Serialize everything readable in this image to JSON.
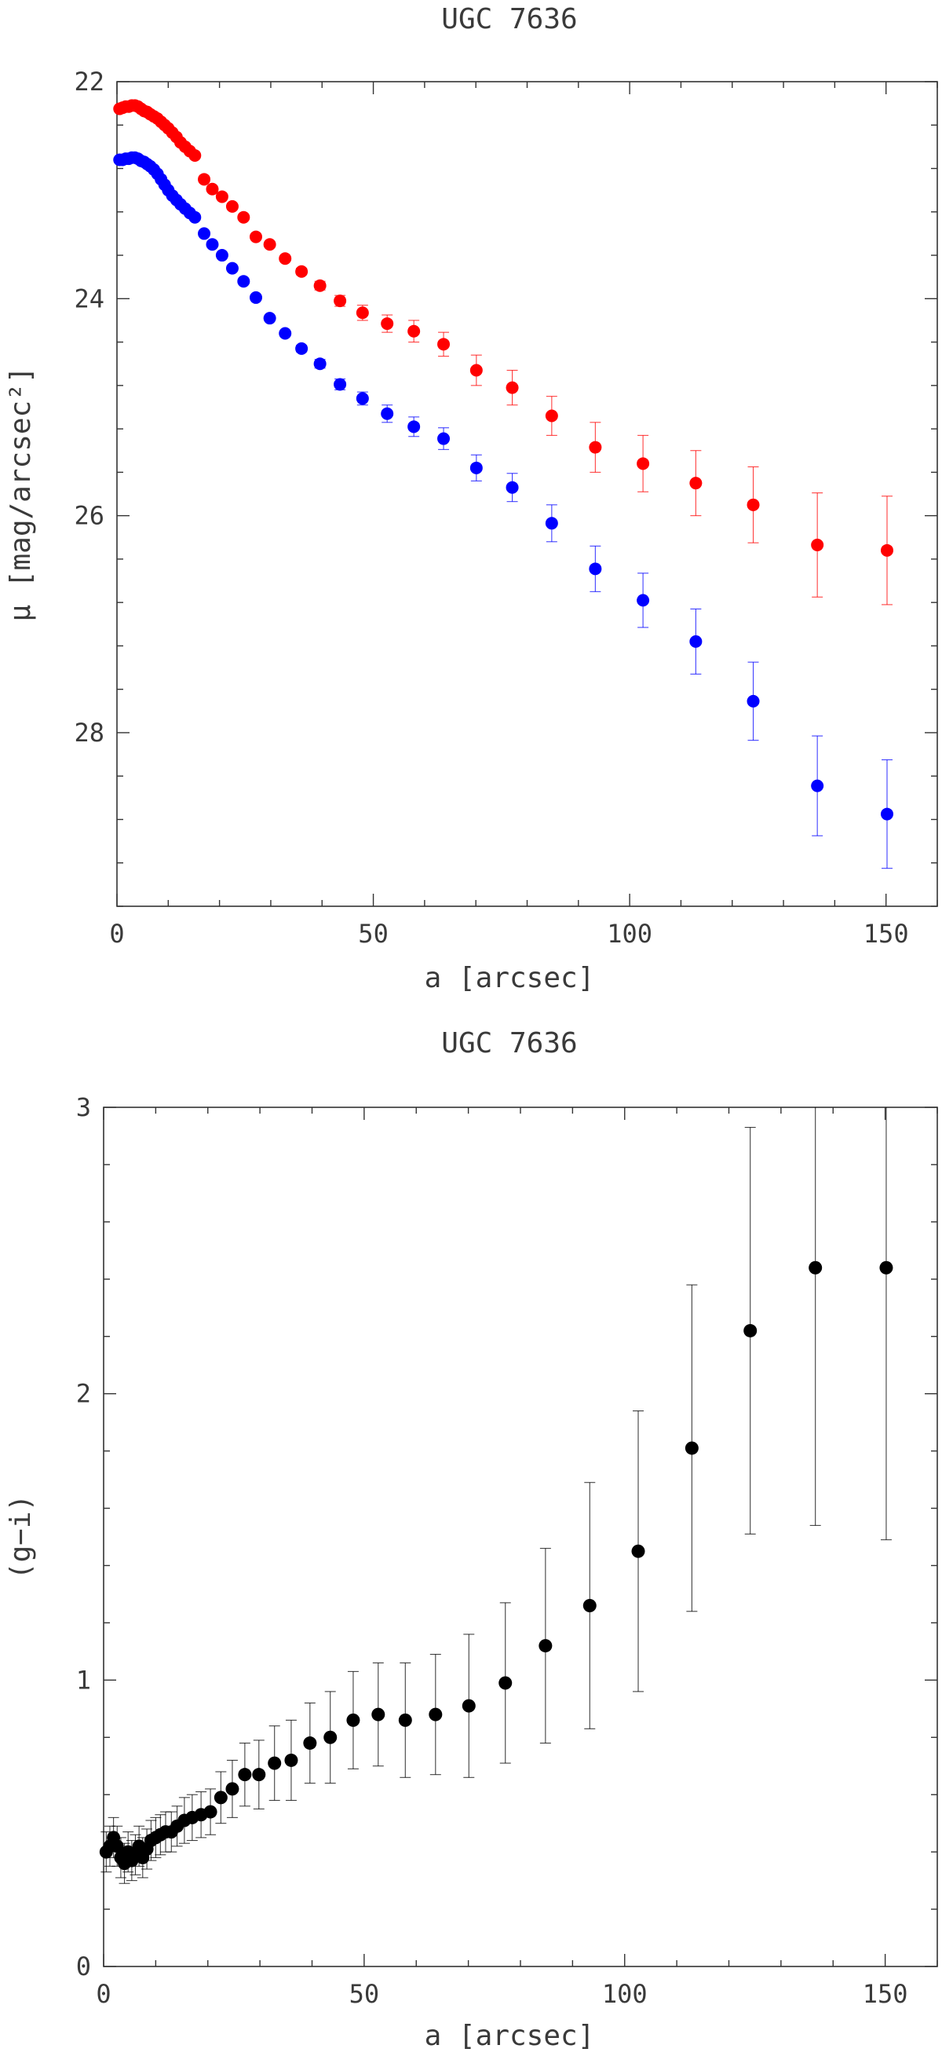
{
  "colors": {
    "g_band": "#ff0000",
    "i_band": "#0000ff",
    "color_index": "#000000",
    "axes": "#333333"
  },
  "charts": [
    {
      "id": "surface-brightness",
      "title": "UGC 7636",
      "xlabel": "a [arcsec]",
      "ylabel": "μ [mag/arcsec²]",
      "y_inverted": true,
      "xlim": [
        0,
        160
      ],
      "ylim": [
        29.6,
        22
      ],
      "x_ticks": [
        0,
        50,
        100,
        150
      ],
      "y_ticks": [
        22,
        24,
        26,
        28
      ],
      "x_tick_labels": [
        "0",
        "50",
        "100",
        "150"
      ],
      "y_tick_labels": [
        "22",
        "24",
        "26",
        "28"
      ]
    },
    {
      "id": "color-profile",
      "title": "UGC 7636",
      "xlabel": "a [arcsec]",
      "ylabel": "(g−i)",
      "y_inverted": false,
      "xlim": [
        0,
        160
      ],
      "ylim": [
        0,
        3
      ],
      "x_ticks": [
        0,
        50,
        100,
        150
      ],
      "y_ticks": [
        0,
        1,
        2,
        3
      ],
      "x_tick_labels": [
        "0",
        "50",
        "100",
        "150"
      ],
      "y_tick_labels": [
        "0",
        "1",
        "2",
        "3"
      ]
    }
  ],
  "chart_data": [
    {
      "type": "scatter",
      "title": "UGC 7636",
      "xlabel": "a [arcsec]",
      "ylabel": "μ [mag/arcsec²]",
      "xlim": [
        0,
        160
      ],
      "ylim": [
        29.6,
        22
      ],
      "series": [
        {
          "color": "#ff0000",
          "x": [
            0.5,
            1.1,
            1.7,
            2.3,
            2.9,
            3.5,
            4.1,
            4.7,
            5.3,
            5.9,
            6.5,
            7.2,
            7.9,
            8.6,
            9.3,
            10,
            10.8,
            11.6,
            12.4,
            13.3,
            14.2,
            15.2,
            17,
            18.6,
            20.5,
            22.5,
            24.7,
            27.1,
            29.8,
            32.8,
            36,
            39.6,
            43.5,
            47.9,
            52.7,
            57.9,
            63.7,
            70.1,
            77.1,
            84.8,
            93.3,
            102.6,
            112.9,
            124.1,
            136.6,
            150.2
          ],
          "y": [
            22.25,
            22.24,
            22.23,
            22.23,
            22.22,
            22.22,
            22.23,
            22.25,
            22.27,
            22.28,
            22.3,
            22.32,
            22.34,
            22.37,
            22.4,
            22.43,
            22.47,
            22.51,
            22.56,
            22.6,
            22.64,
            22.68,
            22.9,
            22.99,
            23.06,
            23.15,
            23.25,
            23.43,
            23.5,
            23.63,
            23.75,
            23.88,
            24.02,
            24.13,
            24.23,
            24.3,
            24.42,
            24.66,
            24.82,
            25.08,
            25.37,
            25.52,
            25.7,
            25.9,
            26.27,
            26.32
          ],
          "err": [
            0,
            0,
            0,
            0,
            0,
            0,
            0,
            0,
            0,
            0,
            0,
            0,
            0,
            0,
            0,
            0,
            0,
            0,
            0,
            0,
            0,
            0,
            0,
            0,
            0,
            0,
            0,
            0,
            0,
            0.02,
            0.03,
            0.04,
            0.05,
            0.07,
            0.08,
            0.1,
            0.11,
            0.14,
            0.16,
            0.18,
            0.23,
            0.26,
            0.3,
            0.35,
            0.48,
            0.5
          ]
        },
        {
          "color": "#0000ff",
          "x": [
            0.5,
            1.1,
            1.7,
            2.3,
            2.9,
            3.5,
            4.1,
            4.7,
            5.3,
            5.9,
            6.5,
            7.2,
            7.9,
            8.6,
            9.3,
            10,
            10.8,
            11.6,
            12.4,
            13.3,
            14.2,
            15.2,
            17,
            18.6,
            20.5,
            22.5,
            24.7,
            27.1,
            29.8,
            32.8,
            36,
            39.6,
            43.5,
            47.9,
            52.7,
            57.9,
            63.7,
            70.1,
            77.1,
            84.8,
            93.3,
            102.6,
            112.9,
            124.1,
            136.6,
            150.2
          ],
          "y": [
            22.72,
            22.72,
            22.71,
            22.71,
            22.7,
            22.7,
            22.71,
            22.73,
            22.74,
            22.76,
            22.78,
            22.81,
            22.85,
            22.9,
            22.95,
            23,
            23.05,
            23.09,
            23.13,
            23.17,
            23.21,
            23.25,
            23.4,
            23.5,
            23.6,
            23.72,
            23.84,
            23.99,
            24.18,
            24.32,
            24.46,
            24.6,
            24.79,
            24.92,
            25.06,
            25.18,
            25.29,
            25.56,
            25.74,
            26.07,
            26.49,
            26.78,
            27.16,
            27.71,
            28.49,
            28.75
          ],
          "err": [
            0,
            0,
            0,
            0,
            0,
            0,
            0,
            0,
            0,
            0,
            0,
            0,
            0,
            0,
            0,
            0,
            0,
            0,
            0,
            0,
            0,
            0,
            0,
            0,
            0,
            0,
            0,
            0,
            0,
            0.02,
            0.03,
            0.04,
            0.05,
            0.06,
            0.08,
            0.09,
            0.1,
            0.12,
            0.13,
            0.17,
            0.21,
            0.25,
            0.3,
            0.36,
            0.46,
            0.5
          ]
        }
      ]
    },
    {
      "type": "scatter",
      "title": "UGC 7636",
      "xlabel": "a [arcsec]",
      "ylabel": "(g−i)",
      "xlim": [
        0,
        160
      ],
      "ylim": [
        0,
        3
      ],
      "series": [
        {
          "color": "#000000",
          "x": [
            0.5,
            1.2,
            1.9,
            2.6,
            3.3,
            4,
            4.7,
            5.4,
            6.1,
            6.8,
            7.5,
            8.3,
            9.1,
            10,
            10.9,
            11.9,
            13,
            14.1,
            15.5,
            17,
            18.7,
            20.5,
            22.5,
            24.7,
            27.1,
            29.8,
            32.8,
            36,
            39.6,
            43.5,
            47.9,
            52.7,
            57.9,
            63.7,
            70.1,
            77.1,
            84.8,
            93.3,
            102.6,
            112.9,
            124.1,
            136.6,
            150.2
          ],
          "y": [
            0.4,
            0.42,
            0.45,
            0.42,
            0.38,
            0.36,
            0.4,
            0.37,
            0.39,
            0.42,
            0.38,
            0.41,
            0.44,
            0.45,
            0.46,
            0.47,
            0.47,
            0.49,
            0.51,
            0.52,
            0.53,
            0.54,
            0.59,
            0.62,
            0.67,
            0.67,
            0.71,
            0.72,
            0.78,
            0.8,
            0.86,
            0.88,
            0.86,
            0.88,
            0.91,
            0.99,
            1.12,
            1.26,
            1.45,
            1.81,
            2.22,
            2.44,
            2.44
          ],
          "err": [
            0.07,
            0.07,
            0.07,
            0.07,
            0.07,
            0.07,
            0.07,
            0.07,
            0.07,
            0.07,
            0.07,
            0.07,
            0.07,
            0.07,
            0.07,
            0.07,
            0.07,
            0.07,
            0.08,
            0.08,
            0.08,
            0.08,
            0.09,
            0.1,
            0.11,
            0.12,
            0.13,
            0.14,
            0.14,
            0.16,
            0.17,
            0.18,
            0.2,
            0.21,
            0.25,
            0.28,
            0.34,
            0.43,
            0.49,
            0.57,
            0.71,
            0.9,
            0.95
          ]
        }
      ]
    }
  ]
}
